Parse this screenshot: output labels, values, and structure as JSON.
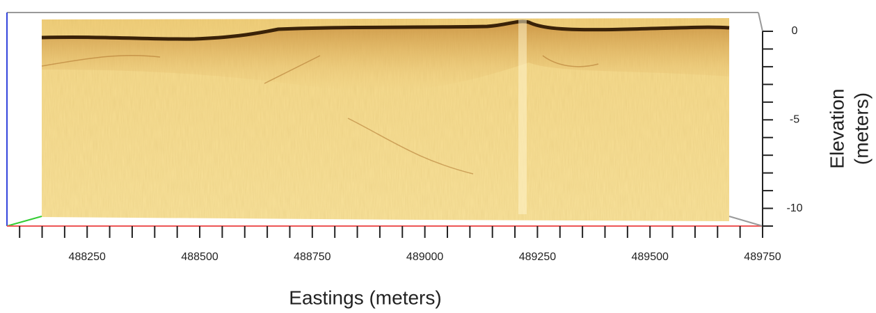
{
  "chart_data": {
    "type": "profile",
    "xlabel": "Eastings (meters)",
    "ylabel": [
      "Elevation",
      "(meters)"
    ],
    "xlim": [
      488075,
      489750
    ],
    "xticks": [
      488250,
      488500,
      488750,
      489000,
      489250,
      489500,
      489750
    ],
    "xminorticks": [
      488100,
      488150,
      488200,
      488300,
      488350,
      488400,
      488450,
      488550,
      488600,
      488650,
      488700,
      488800,
      488850,
      488900,
      488950,
      489050,
      489100,
      489150,
      489200,
      489300,
      489350,
      489400,
      489450,
      489550,
      489600,
      489650,
      489700
    ],
    "ylim": [
      -11,
      0
    ],
    "yticks": [
      0,
      -5,
      -10
    ],
    "yminorticks": [
      -1,
      -2,
      -3,
      -4,
      -6,
      -7,
      -8,
      -9,
      -11
    ]
  }
}
